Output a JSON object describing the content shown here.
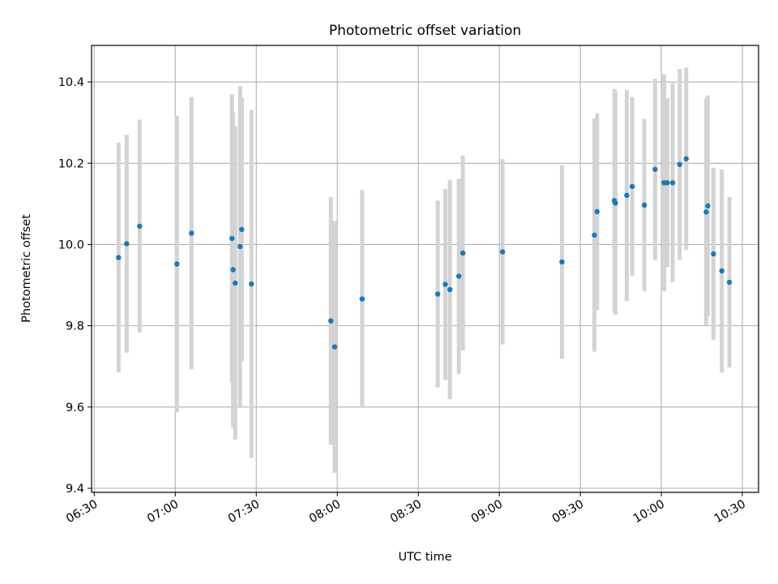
{
  "chart_data": {
    "type": "scatter",
    "title": "Photometric offset variation",
    "xlabel": "UTC time",
    "ylabel": "Photometric offset",
    "x_tick_labels": [
      "06:30",
      "07:00",
      "07:30",
      "08:00",
      "08:30",
      "09:00",
      "09:30",
      "10:00",
      "10:30"
    ],
    "y_tick_labels": [
      "9.4",
      "9.6",
      "9.8",
      "10.0",
      "10.2",
      "10.4"
    ],
    "xlim": [
      "06:29",
      "10:36"
    ],
    "ylim": [
      9.39,
      10.49
    ],
    "grid": true,
    "point_color": "#1f77b4",
    "errorbar_color": "#d3d3d3",
    "points": [
      {
        "x": "06:39:00",
        "y": 9.968,
        "err": 0.283
      },
      {
        "x": "06:42:00",
        "y": 10.002,
        "err": 0.268
      },
      {
        "x": "06:46:48",
        "y": 10.045,
        "err": 0.262
      },
      {
        "x": "07:00:36",
        "y": 9.952,
        "err": 0.365
      },
      {
        "x": "07:06:00",
        "y": 10.028,
        "err": 0.335
      },
      {
        "x": "07:21:00",
        "y": 10.015,
        "err": 0.355
      },
      {
        "x": "07:21:24",
        "y": 9.938,
        "err": 0.388
      },
      {
        "x": "07:22:12",
        "y": 9.905,
        "err": 0.385
      },
      {
        "x": "07:24:00",
        "y": 9.995,
        "err": 0.395
      },
      {
        "x": "07:24:36",
        "y": 10.037,
        "err": 0.325
      },
      {
        "x": "07:28:12",
        "y": 9.903,
        "err": 0.428
      },
      {
        "x": "07:57:36",
        "y": 9.812,
        "err": 0.305
      },
      {
        "x": "07:59:00",
        "y": 9.748,
        "err": 0.31
      },
      {
        "x": "08:09:12",
        "y": 9.866,
        "err": 0.268
      },
      {
        "x": "08:37:12",
        "y": 9.878,
        "err": 0.23
      },
      {
        "x": "08:40:00",
        "y": 9.902,
        "err": 0.235
      },
      {
        "x": "08:41:42",
        "y": 9.889,
        "err": 0.27
      },
      {
        "x": "08:45:00",
        "y": 9.922,
        "err": 0.24
      },
      {
        "x": "08:46:30",
        "y": 9.979,
        "err": 0.24
      },
      {
        "x": "09:01:12",
        "y": 9.982,
        "err": 0.228
      },
      {
        "x": "09:23:12",
        "y": 9.957,
        "err": 0.238
      },
      {
        "x": "09:35:12",
        "y": 10.023,
        "err": 0.287
      },
      {
        "x": "09:36:12",
        "y": 10.081,
        "err": 0.242
      },
      {
        "x": "09:42:36",
        "y": 10.108,
        "err": 0.275
      },
      {
        "x": "09:43:00",
        "y": 10.102,
        "err": 0.275
      },
      {
        "x": "09:47:12",
        "y": 10.121,
        "err": 0.26
      },
      {
        "x": "09:49:12",
        "y": 10.143,
        "err": 0.22
      },
      {
        "x": "09:53:42",
        "y": 10.097,
        "err": 0.212
      },
      {
        "x": "09:57:42",
        "y": 10.185,
        "err": 0.223
      },
      {
        "x": "10:01:00",
        "y": 10.152,
        "err": 0.267
      },
      {
        "x": "10:02:12",
        "y": 10.152,
        "err": 0.208
      },
      {
        "x": "10:04:12",
        "y": 10.152,
        "err": 0.245
      },
      {
        "x": "10:06:48",
        "y": 10.197,
        "err": 0.235
      },
      {
        "x": "10:09:12",
        "y": 10.211,
        "err": 0.224
      },
      {
        "x": "10:16:36",
        "y": 10.08,
        "err": 0.28
      },
      {
        "x": "10:17:12",
        "y": 10.095,
        "err": 0.272
      },
      {
        "x": "10:19:18",
        "y": 9.977,
        "err": 0.212
      },
      {
        "x": "10:22:24",
        "y": 9.935,
        "err": 0.25
      },
      {
        "x": "10:25:12",
        "y": 9.907,
        "err": 0.21
      }
    ]
  }
}
